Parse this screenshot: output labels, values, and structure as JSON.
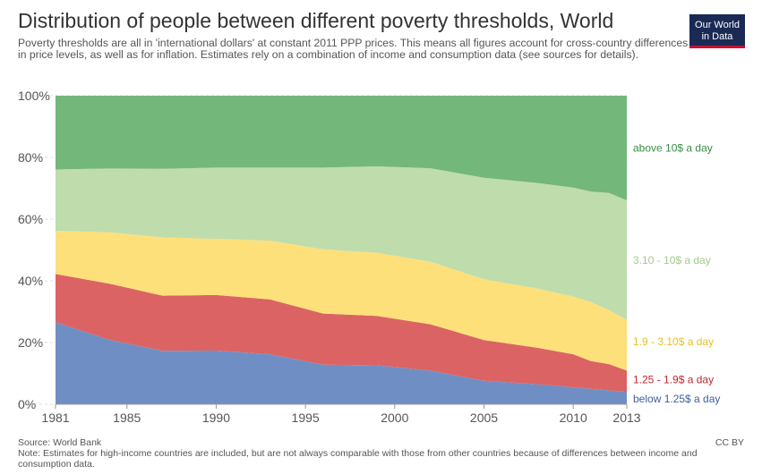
{
  "header": {
    "title": "Distribution of people between different poverty thresholds, World",
    "subtitle": "Poverty thresholds are all in 'international dollars' at constant 2011 PPP prices. This means all figures account for cross-country differences in price levels, as well as for inflation. Estimates rely on a combination of income and consumption data (see sources for details).",
    "logo_line1": "Our World",
    "logo_line2": "in Data"
  },
  "footer": {
    "source": "Source: World Bank",
    "license": "CC BY",
    "note": "Note: Estimates for high-income countries are included, but are not always comparable with those from other countries because of differences between income and consumption data."
  },
  "colors": {
    "below_1_25": "#6f8fc4",
    "1_25_1_9": "#dc6363",
    "1_9_3_10": "#fde07a",
    "3_10_10": "#bfdcad",
    "above_10": "#74b77a",
    "label_below_1_25": "#3d5f9e",
    "label_1_25_1_9": "#c0282d",
    "label_1_9_3_10": "#e6c02a",
    "label_3_10_10": "#a3c98f",
    "label_above_10": "#3a8c44"
  },
  "chart_data": {
    "type": "area",
    "stacked": true,
    "x": [
      1981,
      1984,
      1987,
      1990,
      1993,
      1996,
      1999,
      2002,
      2005,
      2008,
      2010,
      2011,
      2012,
      2013
    ],
    "xlim": [
      1981,
      2013
    ],
    "ylim": [
      0,
      100
    ],
    "x_ticks": [
      "1981",
      "1985",
      "1990",
      "1995",
      "2000",
      "2005",
      "2010",
      "2013"
    ],
    "y_ticks": [
      "0%",
      "20%",
      "40%",
      "60%",
      "80%",
      "100%"
    ],
    "grid": "horizontal",
    "series": [
      {
        "name": "below 1.25$ a day",
        "values": [
          26.6,
          20.9,
          17.3,
          17.4,
          16.2,
          12.8,
          12.6,
          10.9,
          7.6,
          6.5,
          5.5,
          5.0,
          4.5,
          4.0
        ]
      },
      {
        "name": "1.25 - 1.9$ a day",
        "values": [
          15.6,
          18.2,
          17.9,
          18.0,
          17.8,
          16.6,
          16.0,
          15.0,
          13.2,
          11.8,
          10.7,
          9.0,
          8.5,
          6.9
        ]
      },
      {
        "name": "1.9 - 3.10$ a day",
        "values": [
          14.0,
          16.6,
          18.9,
          18.2,
          19.0,
          20.8,
          20.5,
          20.3,
          19.7,
          19.2,
          18.7,
          19.1,
          17.5,
          16.4
        ]
      },
      {
        "name": "3.10 - 10$ a day",
        "values": [
          19.9,
          20.7,
          22.2,
          23.1,
          23.7,
          26.5,
          28.0,
          30.3,
          32.9,
          34.2,
          35.3,
          35.8,
          38.0,
          38.8
        ]
      },
      {
        "name": "above 10$ a day",
        "values": [
          23.9,
          23.6,
          23.7,
          23.3,
          23.3,
          23.3,
          22.9,
          23.5,
          26.6,
          28.3,
          29.8,
          31.1,
          31.5,
          33.9
        ]
      }
    ]
  }
}
